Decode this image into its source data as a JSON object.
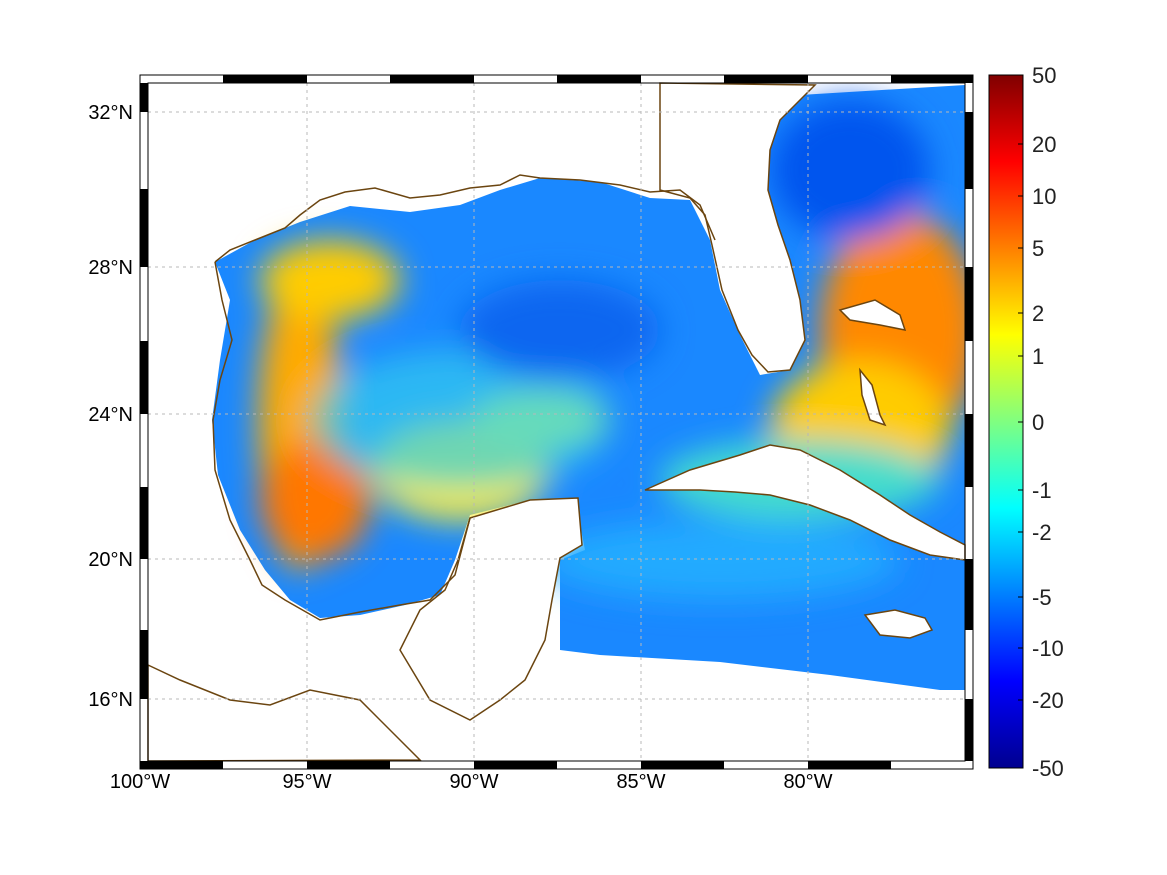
{
  "map": {
    "lon_labels": [
      "100°W",
      "95°W",
      "90°W",
      "85°W",
      "80°W"
    ],
    "lat_labels": [
      "32°N",
      "28°N",
      "24°N",
      "20°N",
      "16°N"
    ],
    "colors": {
      "land_fill": "#ffffff",
      "coastline": "#6b4510",
      "grid": "#b8b8b8"
    }
  },
  "colorbar": {
    "tick_labels": [
      "50",
      "20",
      "10",
      "5",
      "2",
      "1",
      "0",
      "-1",
      "-2",
      "-5",
      "-10",
      "-20",
      "-50"
    ],
    "colormap": "jet"
  }
}
